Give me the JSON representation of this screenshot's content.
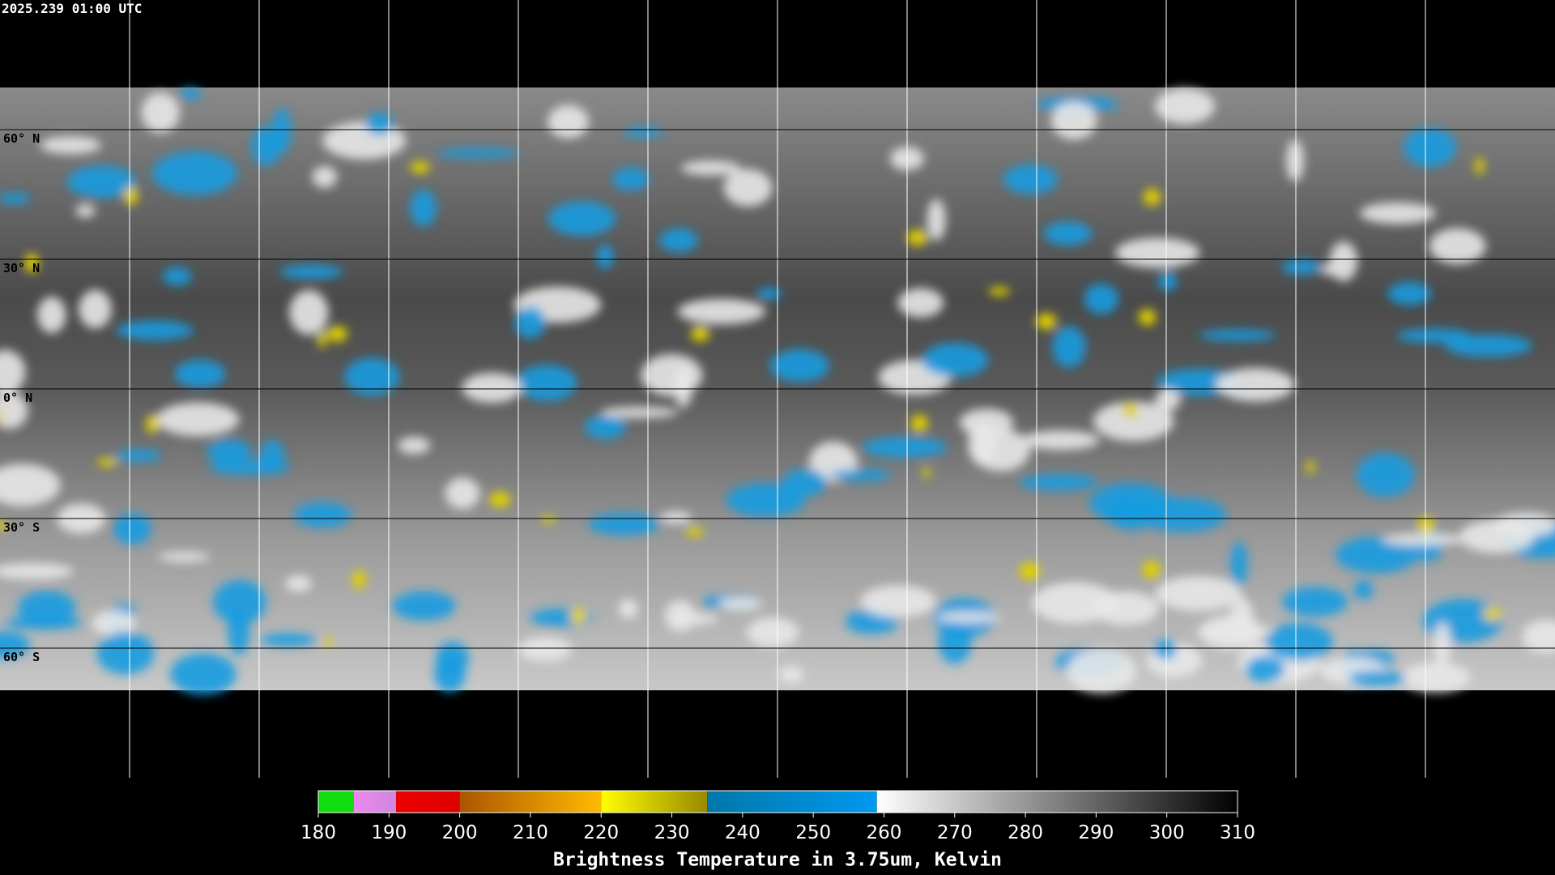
{
  "header": {
    "timestamp": "2025.239 01:00 UTC"
  },
  "map": {
    "latitude_labels": [
      "60° N",
      "30° N",
      "0° N",
      "30° S",
      "60° S"
    ]
  },
  "colorbar": {
    "range": [
      180,
      310
    ],
    "ticks": [
      180,
      190,
      200,
      210,
      220,
      230,
      240,
      250,
      260,
      270,
      280,
      290,
      300,
      310
    ],
    "segments": [
      {
        "from": 180,
        "to": 185,
        "color": "#11dd11",
        "color_end": "#11dd11"
      },
      {
        "from": 185,
        "to": 191,
        "color": "#ee88ee",
        "color_end": "#cc88dd"
      },
      {
        "from": 191,
        "to": 200,
        "color": "#ee0000",
        "color_end": "#dd0000"
      },
      {
        "from": 200,
        "to": 220,
        "color": "#aa5500",
        "color_end": "#ffbb00"
      },
      {
        "from": 220,
        "to": 235,
        "color": "#ffff00",
        "color_end": "#998800"
      },
      {
        "from": 235,
        "to": 259,
        "color": "#0077aa",
        "color_end": "#0099ee"
      },
      {
        "from": 259,
        "to": 310,
        "color": "#ffffff",
        "color_end": "#000000"
      }
    ],
    "label": "Brightness Temperature in 3.75um, Kelvin"
  }
}
